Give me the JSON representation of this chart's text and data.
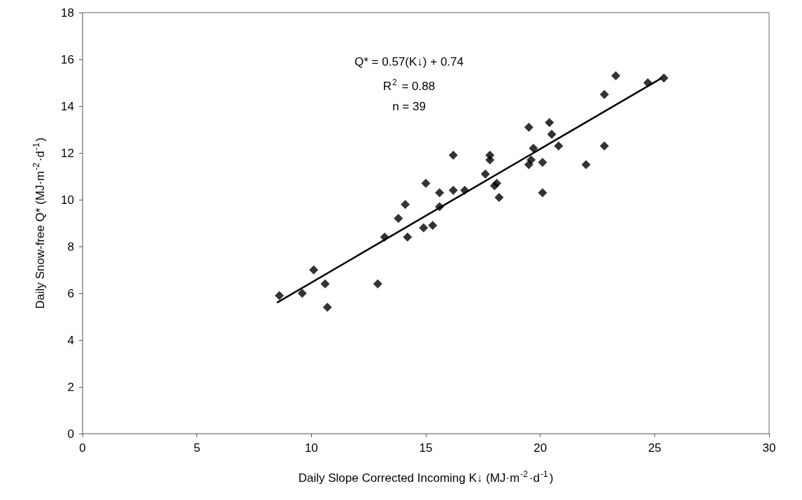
{
  "chart_data": {
    "type": "scatter",
    "xlabel": "Daily Slope Corrected Incoming K↓ (MJ·m$^{-2}$·d$^{-1}$)",
    "ylabel": "Daily Snow-free Q* (MJ·m$^{-2}$·d$^{-1}$)",
    "xlim": [
      0,
      30
    ],
    "xticks": [
      0,
      5,
      10,
      15,
      20,
      25,
      30
    ],
    "ylim": [
      0,
      18
    ],
    "yticks": [
      0,
      2,
      4,
      6,
      8,
      10,
      12,
      14,
      16,
      18
    ],
    "grid": false,
    "marker": "diamond",
    "annotations": [
      "Q* = 0.57(K↓) + 0.74",
      "R$^{2}$ = 0.88",
      "n = 39"
    ],
    "series": [
      {
        "color": "#000000",
        "x": [
          8.6,
          9.6,
          10.1,
          10.6,
          10.7,
          12.9,
          13.2,
          13.8,
          14.1,
          14.2,
          14.9,
          15.3,
          15.0,
          15.6,
          15.6,
          16.2,
          16.2,
          16.7,
          17.6,
          17.8,
          17.8,
          18.0,
          18.1,
          18.2,
          19.5,
          19.7,
          19.6,
          19.5,
          20.1,
          20.1,
          20.4,
          20.5,
          20.8,
          22.0,
          22.8,
          22.8,
          23.3,
          24.7,
          25.4
        ],
        "values": [
          5.9,
          6.0,
          7.0,
          6.4,
          5.4,
          6.4,
          8.4,
          9.2,
          9.8,
          8.4,
          8.8,
          8.9,
          10.7,
          10.3,
          9.7,
          11.9,
          10.4,
          10.4,
          11.1,
          11.9,
          11.7,
          10.6,
          10.7,
          10.1,
          13.1,
          12.2,
          11.7,
          11.5,
          11.6,
          10.3,
          13.3,
          12.8,
          12.3,
          11.5,
          12.3,
          14.5,
          15.3,
          15.0,
          15.2
        ]
      },
      {
        "type": "line",
        "color": "#000000",
        "line_style": "solid",
        "marker": "none",
        "x": [
          8.5,
          25.3
        ],
        "values": [
          5.6,
          15.2
        ]
      }
    ]
  }
}
